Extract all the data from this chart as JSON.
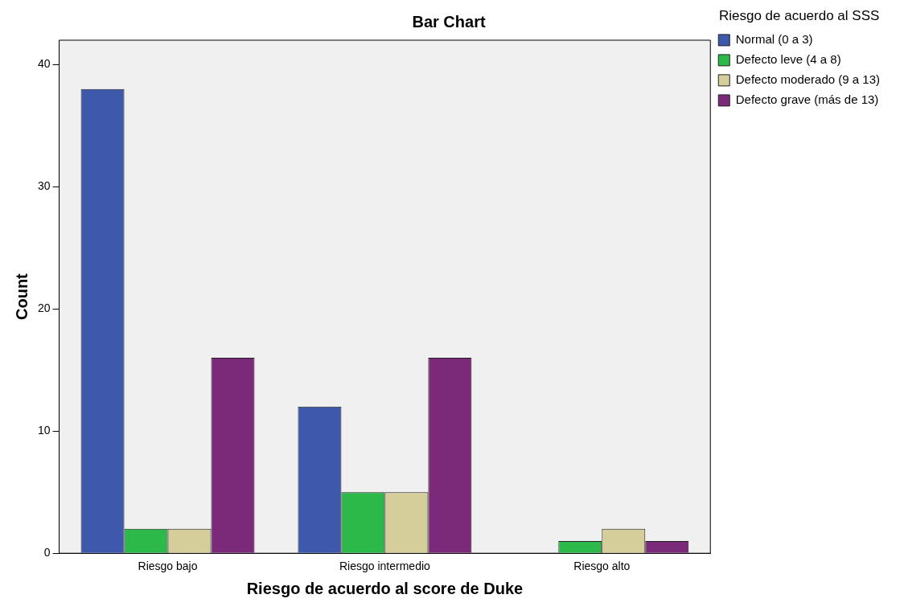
{
  "chart_data": {
    "type": "bar",
    "title": "Bar Chart",
    "xlabel": "Riesgo de acuerdo al score de Duke",
    "ylabel": "Count",
    "legend_title": "Riesgo de acuerdo al SSS",
    "categories": [
      "Riesgo bajo",
      "Riesgo intermedio",
      "Riesgo alto"
    ],
    "series": [
      {
        "name": "Normal (0 a 3)",
        "color": "#3e58ac",
        "values": [
          38,
          12,
          null
        ]
      },
      {
        "name": "Defecto leve (4 a 8)",
        "color": "#2db84a",
        "values": [
          2,
          5,
          1
        ]
      },
      {
        "name": "Defecto moderado (9 a 13)",
        "color": "#d5cd9a",
        "values": [
          2,
          5,
          2
        ]
      },
      {
        "name": "Defecto grave (más de 13)",
        "color": "#7b2a79",
        "values": [
          16,
          16,
          1
        ]
      }
    ],
    "ylim": [
      0,
      42
    ],
    "yticks": [
      0,
      10,
      20,
      30,
      40
    ],
    "grid": false,
    "legend": "top right"
  }
}
